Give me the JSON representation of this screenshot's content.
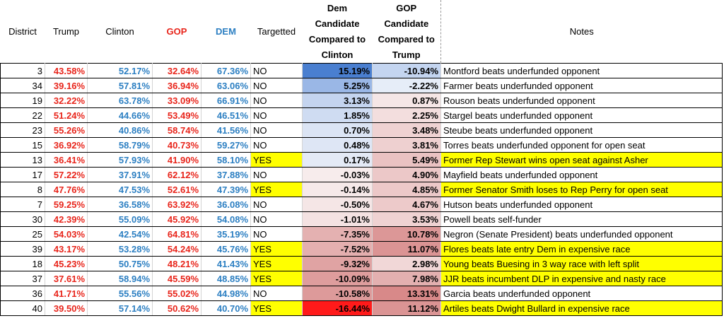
{
  "headers": {
    "district": "District",
    "trump": "Trump",
    "clinton": "Clinton",
    "gop": "GOP",
    "dem": "DEM",
    "targetted": "Targetted",
    "dem_vs_clinton": "Dem Candidate Compared to Clinton",
    "gop_vs_trump": "GOP Candidate Compared to Trump",
    "notes": "Notes"
  },
  "colors": {
    "red_text": "#e8251b",
    "blue_text": "#2c7fc2",
    "yes_highlight": "#ffff00"
  },
  "rows": [
    {
      "district": "3",
      "trump": "43.58%",
      "clinton": "52.17%",
      "gop": "32.64%",
      "dem": "67.36%",
      "targetted": "NO",
      "dem_diff": "15.19%",
      "gop_diff": "-10.94%",
      "notes": "Montford beats underfunded opponent",
      "dem_bg": "#4a7fd0",
      "gop_bg": "#c4d5f0"
    },
    {
      "district": "34",
      "trump": "39.16%",
      "clinton": "57.81%",
      "gop": "36.94%",
      "dem": "63.06%",
      "targetted": "NO",
      "dem_diff": "5.25%",
      "gop_diff": "-2.22%",
      "notes": "Farmer beats underfunded opponent",
      "dem_bg": "#9ab7e6",
      "gop_bg": "#e6edf8"
    },
    {
      "district": "19",
      "trump": "32.22%",
      "clinton": "63.78%",
      "gop": "33.09%",
      "dem": "66.91%",
      "targetted": "NO",
      "dem_diff": "3.13%",
      "gop_diff": "0.87%",
      "notes": "Rouson beats underfunded opponent",
      "dem_bg": "#c4d4ef",
      "gop_bg": "#f5e6e6"
    },
    {
      "district": "22",
      "trump": "51.24%",
      "clinton": "44.66%",
      "gop": "53.49%",
      "dem": "46.51%",
      "targetted": "NO",
      "dem_diff": "1.85%",
      "gop_diff": "2.25%",
      "notes": "Stargel beats underfunded opponent",
      "dem_bg": "#cfdcf2",
      "gop_bg": "#f3dede"
    },
    {
      "district": "23",
      "trump": "55.26%",
      "clinton": "40.86%",
      "gop": "58.74%",
      "dem": "41.56%",
      "targetted": "NO",
      "dem_diff": "0.70%",
      "gop_diff": "3.48%",
      "notes": "Steube beats underfunded opponent",
      "dem_bg": "#dbe4f4",
      "gop_bg": "#efd2d2"
    },
    {
      "district": "15",
      "trump": "36.92%",
      "clinton": "58.79%",
      "gop": "40.73%",
      "dem": "59.27%",
      "targetted": "NO",
      "dem_diff": "0.48%",
      "gop_diff": "3.81%",
      "notes": "Torres beats underfunded opponent for open seat",
      "dem_bg": "#dee6f5",
      "gop_bg": "#eed0d0"
    },
    {
      "district": "13",
      "trump": "36.41%",
      "clinton": "57.93%",
      "gop": "41.90%",
      "dem": "58.10%",
      "targetted": "YES",
      "dem_diff": "0.17%",
      "gop_diff": "5.49%",
      "notes": "Former Rep Stewart wins open seat against Asher",
      "dem_bg": "#e4eaf6",
      "gop_bg": "#eac2c2"
    },
    {
      "district": "17",
      "trump": "57.22%",
      "clinton": "37.91%",
      "gop": "62.12%",
      "dem": "37.88%",
      "targetted": "NO",
      "dem_diff": "-0.03%",
      "gop_diff": "4.90%",
      "notes": "Mayfield beats underfunded opponent",
      "dem_bg": "#f7ecec",
      "gop_bg": "#ecc8c8"
    },
    {
      "district": "8",
      "trump": "47.76%",
      "clinton": "47.53%",
      "gop": "52.61%",
      "dem": "47.39%",
      "targetted": "YES",
      "dem_diff": "-0.14%",
      "gop_diff": "4.85%",
      "notes": "Former Senator Smith loses to Rep Perry for open seat",
      "dem_bg": "#f6e9e9",
      "gop_bg": "#ecc8c8"
    },
    {
      "district": "7",
      "trump": "59.25%",
      "clinton": "36.58%",
      "gop": "63.92%",
      "dem": "36.08%",
      "targetted": "NO",
      "dem_diff": "-0.50%",
      "gop_diff": "4.67%",
      "notes": "Hutson beats underfunded opponent",
      "dem_bg": "#f5e6e6",
      "gop_bg": "#edcaca"
    },
    {
      "district": "30",
      "trump": "42.39%",
      "clinton": "55.09%",
      "gop": "45.92%",
      "dem": "54.08%",
      "targetted": "NO",
      "dem_diff": "-1.01%",
      "gop_diff": "3.53%",
      "notes": "Powell beats self-funder",
      "dem_bg": "#f4e2e2",
      "gop_bg": "#efd2d2"
    },
    {
      "district": "25",
      "trump": "54.03%",
      "clinton": "42.54%",
      "gop": "64.81%",
      "dem": "35.19%",
      "targetted": "NO",
      "dem_diff": "-7.35%",
      "gop_diff": "10.78%",
      "notes": "Negron (Senate President) beats underfunded opponent",
      "dem_bg": "#e4b1b1",
      "gop_bg": "#dc9797"
    },
    {
      "district": "39",
      "trump": "43.17%",
      "clinton": "53.28%",
      "gop": "54.24%",
      "dem": "45.76%",
      "targetted": "YES",
      "dem_diff": "-7.52%",
      "gop_diff": "11.07%",
      "notes": "Flores beats late entry Dem in expensive race",
      "dem_bg": "#e4afaf",
      "gop_bg": "#db9494"
    },
    {
      "district": "18",
      "trump": "45.23%",
      "clinton": "50.75%",
      "gop": "48.21%",
      "dem": "41.43%",
      "targetted": "YES",
      "dem_diff": "-9.32%",
      "gop_diff": "2.98%",
      "notes": "Young beats Buesing in 3 way race with left split",
      "dem_bg": "#e0a3a3",
      "gop_bg": "#f1d7d7"
    },
    {
      "district": "37",
      "trump": "37.61%",
      "clinton": "58.94%",
      "gop": "45.59%",
      "dem": "48.85%",
      "targetted": "YES",
      "dem_diff": "-10.09%",
      "gop_diff": "7.98%",
      "notes": "JJR beats incumbent DLP in expensive and nasty race",
      "dem_bg": "#de9d9d",
      "gop_bg": "#e3b0b0"
    },
    {
      "district": "36",
      "trump": "41.71%",
      "clinton": "55.56%",
      "gop": "55.02%",
      "dem": "44.98%",
      "targetted": "NO",
      "dem_diff": "-10.58%",
      "gop_diff": "13.31%",
      "notes": "Garcia beats underfunded opponent",
      "dem_bg": "#dd9a9a",
      "gop_bg": "#d88989"
    },
    {
      "district": "40",
      "trump": "39.50%",
      "clinton": "57.14%",
      "gop": "50.62%",
      "dem": "40.70%",
      "targetted": "YES",
      "dem_diff": "-16.44%",
      "gop_diff": "11.12%",
      "notes": "Artiles beats Dwight Bullard in expensive race",
      "dem_bg": "#ff1a1a",
      "gop_bg": "#db9494"
    }
  ]
}
